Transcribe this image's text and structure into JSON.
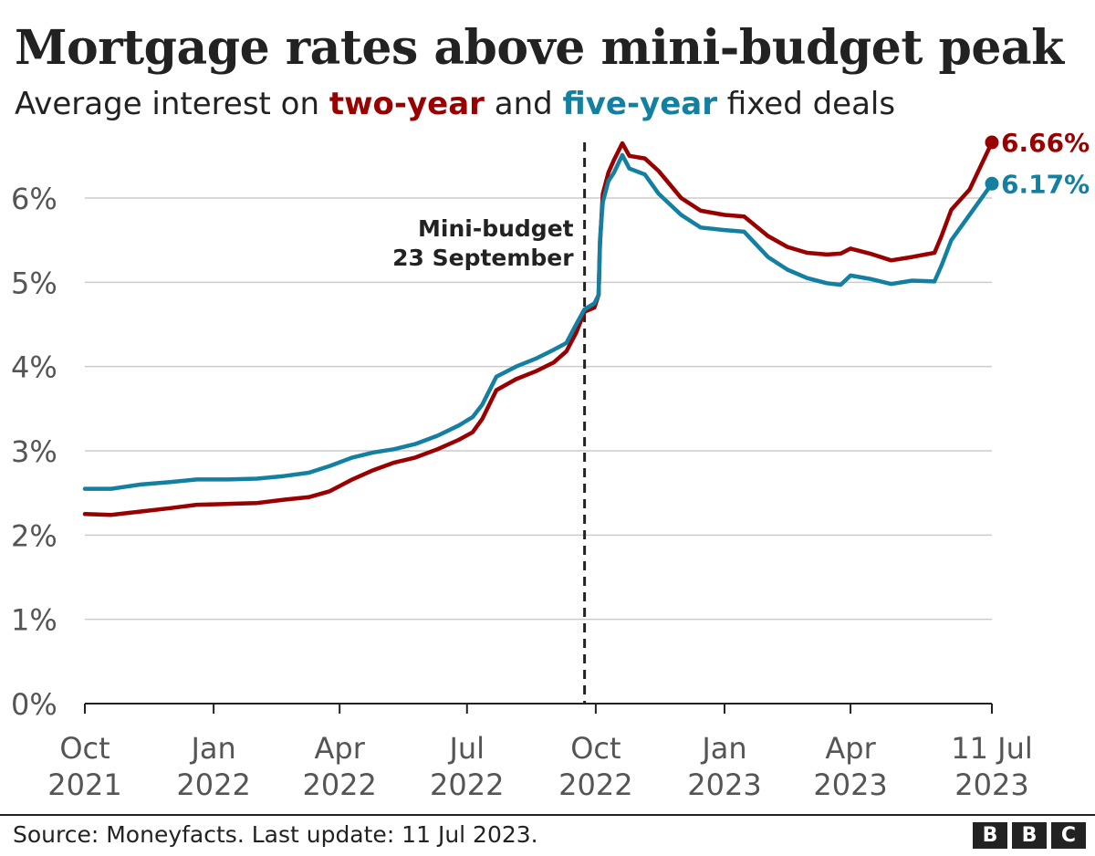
{
  "header": {
    "title": "Mortgage rates above mini-budget peak",
    "subtitle_pre": "Average interest on ",
    "subtitle_two": "two-year",
    "subtitle_mid": " and ",
    "subtitle_five": "five-year",
    "subtitle_post": " fixed deals"
  },
  "footer": {
    "source": "Source: Moneyfacts. Last update: 11 Jul 2023.",
    "logo_letters": [
      "B",
      "B",
      "C"
    ]
  },
  "chart_data": {
    "type": "line",
    "title": "Mortgage rates above mini-budget peak",
    "subtitle": "Average interest on two-year and five-year fixed deals",
    "xlim": [
      "2021-10-01",
      "2023-07-11"
    ],
    "ylim": [
      0,
      6.66
    ],
    "y_ticks": [
      {
        "value": 0,
        "label": "0%"
      },
      {
        "value": 1,
        "label": "1%"
      },
      {
        "value": 2,
        "label": "2%"
      },
      {
        "value": 3,
        "label": "3%"
      },
      {
        "value": 4,
        "label": "4%"
      },
      {
        "value": 5,
        "label": "5%"
      },
      {
        "value": 6,
        "label": "6%"
      }
    ],
    "x_ticks": [
      {
        "date": "2021-10-01",
        "label": [
          "Oct",
          "2021"
        ]
      },
      {
        "date": "2022-01-01",
        "label": [
          "Jan",
          "2022"
        ]
      },
      {
        "date": "2022-04-01",
        "label": [
          "Apr",
          "2022"
        ]
      },
      {
        "date": "2022-07-01",
        "label": [
          "Jul",
          "2022"
        ]
      },
      {
        "date": "2022-10-01",
        "label": [
          "Oct",
          "2022"
        ]
      },
      {
        "date": "2023-01-01",
        "label": [
          "Jan",
          "2023"
        ]
      },
      {
        "date": "2023-04-01",
        "label": [
          "Apr",
          "2023"
        ]
      },
      {
        "date": "2023-07-11",
        "label": [
          "11 Jul",
          "2023"
        ]
      }
    ],
    "grid": true,
    "legend": "subtitle",
    "annotation": {
      "date": "2022-09-23",
      "lines": [
        "Mini-budget",
        "23 September"
      ]
    },
    "series": [
      {
        "name": "two-year",
        "color": "#990000",
        "end_label": "6.66%",
        "points": [
          [
            "2021-10-01",
            2.25
          ],
          [
            "2021-10-20",
            2.24
          ],
          [
            "2021-11-10",
            2.28
          ],
          [
            "2021-12-01",
            2.32
          ],
          [
            "2021-12-20",
            2.36
          ],
          [
            "2022-01-10",
            2.37
          ],
          [
            "2022-02-01",
            2.38
          ],
          [
            "2022-02-20",
            2.42
          ],
          [
            "2022-03-10",
            2.45
          ],
          [
            "2022-03-25",
            2.52
          ],
          [
            "2022-04-10",
            2.66
          ],
          [
            "2022-04-25",
            2.77
          ],
          [
            "2022-05-10",
            2.86
          ],
          [
            "2022-05-25",
            2.92
          ],
          [
            "2022-06-10",
            3.02
          ],
          [
            "2022-06-25",
            3.13
          ],
          [
            "2022-07-05",
            3.22
          ],
          [
            "2022-07-12",
            3.38
          ],
          [
            "2022-07-22",
            3.72
          ],
          [
            "2022-08-05",
            3.85
          ],
          [
            "2022-08-20",
            3.95
          ],
          [
            "2022-09-01",
            4.05
          ],
          [
            "2022-09-10",
            4.18
          ],
          [
            "2022-09-17",
            4.4
          ],
          [
            "2022-09-23",
            4.65
          ],
          [
            "2022-09-30",
            4.7
          ],
          [
            "2022-10-03",
            4.85
          ],
          [
            "2022-10-04",
            5.45
          ],
          [
            "2022-10-06",
            6.05
          ],
          [
            "2022-10-10",
            6.3
          ],
          [
            "2022-10-14",
            6.45
          ],
          [
            "2022-10-20",
            6.65
          ],
          [
            "2022-10-25",
            6.5
          ],
          [
            "2022-11-05",
            6.47
          ],
          [
            "2022-11-15",
            6.32
          ],
          [
            "2022-12-01",
            6.0
          ],
          [
            "2022-12-15",
            5.85
          ],
          [
            "2023-01-01",
            5.8
          ],
          [
            "2023-01-15",
            5.78
          ],
          [
            "2023-02-01",
            5.55
          ],
          [
            "2023-02-15",
            5.42
          ],
          [
            "2023-03-01",
            5.35
          ],
          [
            "2023-03-15",
            5.33
          ],
          [
            "2023-03-25",
            5.34
          ],
          [
            "2023-04-01",
            5.4
          ],
          [
            "2023-04-15",
            5.34
          ],
          [
            "2023-04-30",
            5.26
          ],
          [
            "2023-05-15",
            5.3
          ],
          [
            "2023-05-31",
            5.35
          ],
          [
            "2023-06-05",
            5.55
          ],
          [
            "2023-06-12",
            5.86
          ],
          [
            "2023-06-25",
            6.1
          ],
          [
            "2023-07-11",
            6.66
          ]
        ]
      },
      {
        "name": "five-year",
        "color": "#1380A1",
        "end_label": "6.17%",
        "points": [
          [
            "2021-10-01",
            2.55
          ],
          [
            "2021-10-20",
            2.55
          ],
          [
            "2021-11-10",
            2.6
          ],
          [
            "2021-12-01",
            2.63
          ],
          [
            "2021-12-20",
            2.66
          ],
          [
            "2022-01-10",
            2.66
          ],
          [
            "2022-02-01",
            2.67
          ],
          [
            "2022-02-20",
            2.7
          ],
          [
            "2022-03-10",
            2.74
          ],
          [
            "2022-03-25",
            2.82
          ],
          [
            "2022-04-10",
            2.92
          ],
          [
            "2022-04-25",
            2.98
          ],
          [
            "2022-05-10",
            3.02
          ],
          [
            "2022-05-25",
            3.08
          ],
          [
            "2022-06-10",
            3.18
          ],
          [
            "2022-06-25",
            3.3
          ],
          [
            "2022-07-05",
            3.4
          ],
          [
            "2022-07-12",
            3.55
          ],
          [
            "2022-07-22",
            3.88
          ],
          [
            "2022-08-05",
            4.0
          ],
          [
            "2022-08-20",
            4.1
          ],
          [
            "2022-09-01",
            4.2
          ],
          [
            "2022-09-10",
            4.28
          ],
          [
            "2022-09-17",
            4.5
          ],
          [
            "2022-09-23",
            4.68
          ],
          [
            "2022-09-30",
            4.75
          ],
          [
            "2022-10-03",
            4.85
          ],
          [
            "2022-10-04",
            5.5
          ],
          [
            "2022-10-06",
            5.95
          ],
          [
            "2022-10-10",
            6.2
          ],
          [
            "2022-10-14",
            6.3
          ],
          [
            "2022-10-20",
            6.51
          ],
          [
            "2022-10-25",
            6.35
          ],
          [
            "2022-11-05",
            6.28
          ],
          [
            "2022-11-15",
            6.05
          ],
          [
            "2022-12-01",
            5.8
          ],
          [
            "2022-12-15",
            5.65
          ],
          [
            "2023-01-01",
            5.62
          ],
          [
            "2023-01-15",
            5.6
          ],
          [
            "2023-02-01",
            5.3
          ],
          [
            "2023-02-15",
            5.15
          ],
          [
            "2023-03-01",
            5.05
          ],
          [
            "2023-03-15",
            4.99
          ],
          [
            "2023-03-25",
            4.97
          ],
          [
            "2023-04-01",
            5.08
          ],
          [
            "2023-04-15",
            5.04
          ],
          [
            "2023-04-30",
            4.98
          ],
          [
            "2023-05-15",
            5.02
          ],
          [
            "2023-05-31",
            5.01
          ],
          [
            "2023-06-05",
            5.2
          ],
          [
            "2023-06-12",
            5.5
          ],
          [
            "2023-06-25",
            5.8
          ],
          [
            "2023-07-11",
            6.17
          ]
        ]
      }
    ]
  }
}
